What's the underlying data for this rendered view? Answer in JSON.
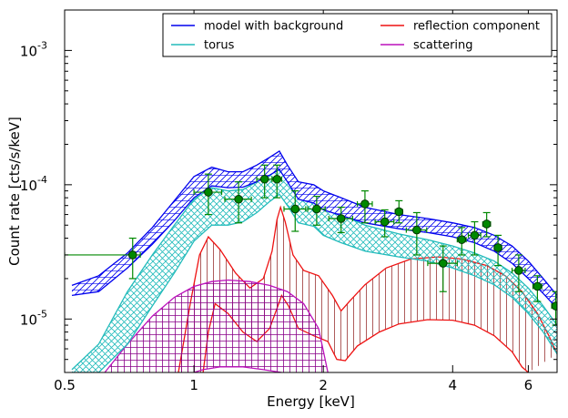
{
  "chart_data": {
    "type": "line",
    "xlabel": "Energy [keV]",
    "ylabel": "Count rate [cts/s/keV]",
    "xscale": "log",
    "yscale": "log",
    "xlim": [
      0.5,
      7.0
    ],
    "ylim": [
      4e-06,
      0.002
    ],
    "xticks": [
      {
        "value": 0.5,
        "label": "0.5"
      },
      {
        "value": 1,
        "label": "1"
      },
      {
        "value": 2,
        "label": "2"
      },
      {
        "value": 4,
        "label": "4"
      },
      {
        "value": 6,
        "label": "6"
      }
    ],
    "yticks": [
      {
        "value": 1e-05,
        "base": "10",
        "exp": "-5"
      },
      {
        "value": 0.0001,
        "base": "10",
        "exp": "-4"
      },
      {
        "value": 0.001,
        "base": "10",
        "exp": "-3"
      }
    ],
    "legend": {
      "placement": "top-right",
      "columns": 2,
      "entries": [
        {
          "label": "model with background",
          "color": "#0000ee"
        },
        {
          "label": "reflection component",
          "color": "#ee1111"
        },
        {
          "label": "torus",
          "color": "#22bbbb"
        },
        {
          "label": "scattering",
          "color": "#bb11bb"
        }
      ]
    },
    "series": [
      {
        "name": "model with background",
        "color": "#0000ee",
        "style": "band-hatched",
        "upper": [
          [
            0.52,
            1.78e-05
          ],
          [
            0.6,
            2.1e-05
          ],
          [
            0.7,
            3.1e-05
          ],
          [
            0.8,
            4.8e-05
          ],
          [
            0.9,
            7.6e-05
          ],
          [
            1.0,
            0.000115
          ],
          [
            1.1,
            0.000135
          ],
          [
            1.2,
            0.000125
          ],
          [
            1.3,
            0.000125
          ],
          [
            1.4,
            0.00014
          ],
          [
            1.5,
            0.00016
          ],
          [
            1.58,
            0.000178
          ],
          [
            1.65,
            0.00014
          ],
          [
            1.75,
            0.000105
          ],
          [
            1.9,
            0.0001
          ],
          [
            2.0,
            9e-05
          ],
          [
            2.2,
            8e-05
          ],
          [
            2.5,
            6.8e-05
          ],
          [
            3.0,
            6e-05
          ],
          [
            3.5,
            5.6e-05
          ],
          [
            4.0,
            5.2e-05
          ],
          [
            4.5,
            4.8e-05
          ],
          [
            5.0,
            4.2e-05
          ],
          [
            5.5,
            3.5e-05
          ],
          [
            6.0,
            2.7e-05
          ],
          [
            6.5,
            2e-05
          ],
          [
            7.0,
            1.5e-05
          ]
        ],
        "lower": [
          [
            0.52,
            1.5e-05
          ],
          [
            0.6,
            1.6e-05
          ],
          [
            0.7,
            2.4e-05
          ],
          [
            0.8,
            3.6e-05
          ],
          [
            0.9,
            5.4e-05
          ],
          [
            1.0,
            8e-05
          ],
          [
            1.1,
            9.8e-05
          ],
          [
            1.2,
            9.5e-05
          ],
          [
            1.3,
            9.6e-05
          ],
          [
            1.4,
            0.000105
          ],
          [
            1.5,
            0.000118
          ],
          [
            1.58,
            0.00013
          ],
          [
            1.65,
            0.000105
          ],
          [
            1.75,
            7.8e-05
          ],
          [
            1.9,
            7.3e-05
          ],
          [
            2.0,
            6.5e-05
          ],
          [
            2.2,
            5.9e-05
          ],
          [
            2.5,
            5.2e-05
          ],
          [
            3.0,
            4.7e-05
          ],
          [
            3.5,
            4.4e-05
          ],
          [
            4.0,
            4.1e-05
          ],
          [
            4.5,
            3.7e-05
          ],
          [
            5.0,
            3.2e-05
          ],
          [
            5.5,
            2.6e-05
          ],
          [
            6.0,
            2e-05
          ],
          [
            6.5,
            1.55e-05
          ],
          [
            7.0,
            1.2e-05
          ]
        ]
      },
      {
        "name": "torus",
        "color": "#22bbbb",
        "style": "band-crosshatched",
        "upper": [
          [
            0.52,
            4.2e-06
          ],
          [
            0.6,
            6.5e-06
          ],
          [
            0.7,
            1.6e-05
          ],
          [
            0.8,
            3e-05
          ],
          [
            0.9,
            5e-05
          ],
          [
            1.0,
            7.8e-05
          ],
          [
            1.1,
            9.5e-05
          ],
          [
            1.2,
            9e-05
          ],
          [
            1.3,
            9.2e-05
          ],
          [
            1.4,
            0.000105
          ],
          [
            1.5,
            0.000122
          ],
          [
            1.58,
            0.000135
          ],
          [
            1.65,
            0.00011
          ],
          [
            1.75,
            8.2e-05
          ],
          [
            1.9,
            7.8e-05
          ],
          [
            2.0,
            6.8e-05
          ],
          [
            2.2,
            6e-05
          ],
          [
            2.5,
            5e-05
          ],
          [
            3.0,
            4.3e-05
          ],
          [
            3.5,
            3.9e-05
          ],
          [
            4.0,
            3.5e-05
          ],
          [
            4.5,
            3.1e-05
          ],
          [
            5.0,
            2.7e-05
          ],
          [
            5.5,
            2.2e-05
          ],
          [
            6.0,
            1.7e-05
          ],
          [
            6.5,
            1.25e-05
          ],
          [
            7.0,
            9e-06
          ]
        ],
        "lower": [
          [
            0.52,
            4e-06
          ],
          [
            0.6,
            4e-06
          ],
          [
            0.7,
            6.5e-06
          ],
          [
            0.8,
            1.25e-05
          ],
          [
            0.9,
            2.2e-05
          ],
          [
            1.0,
            3.8e-05
          ],
          [
            1.1,
            5e-05
          ],
          [
            1.2,
            5e-05
          ],
          [
            1.3,
            5.3e-05
          ],
          [
            1.4,
            6.2e-05
          ],
          [
            1.5,
            7.5e-05
          ],
          [
            1.58,
            8.5e-05
          ],
          [
            1.65,
            7e-05
          ],
          [
            1.75,
            5.2e-05
          ],
          [
            1.9,
            4.9e-05
          ],
          [
            2.0,
            4.2e-05
          ],
          [
            2.2,
            3.7e-05
          ],
          [
            2.5,
            3.2e-05
          ],
          [
            3.0,
            2.9e-05
          ],
          [
            3.5,
            2.7e-05
          ],
          [
            4.0,
            2.4e-05
          ],
          [
            4.5,
            2.1e-05
          ],
          [
            5.0,
            1.8e-05
          ],
          [
            5.5,
            1.45e-05
          ],
          [
            6.0,
            1.1e-05
          ],
          [
            6.5,
            8e-06
          ],
          [
            7.0,
            5.5e-06
          ]
        ]
      },
      {
        "name": "reflection component",
        "color": "#ee1111",
        "style": "band-vertical-hatch",
        "upper": [
          [
            0.92,
            4e-06
          ],
          [
            0.98,
            1.3e-05
          ],
          [
            1.03,
            3e-05
          ],
          [
            1.08,
            4.1e-05
          ],
          [
            1.15,
            3.3e-05
          ],
          [
            1.25,
            2.2e-05
          ],
          [
            1.35,
            1.7e-05
          ],
          [
            1.45,
            2e-05
          ],
          [
            1.52,
            3.2e-05
          ],
          [
            1.56,
            5.5e-05
          ],
          [
            1.59,
            6.8e-05
          ],
          [
            1.63,
            5.3e-05
          ],
          [
            1.7,
            3e-05
          ],
          [
            1.8,
            2.3e-05
          ],
          [
            1.95,
            2.1e-05
          ],
          [
            2.1,
            1.5e-05
          ],
          [
            2.2,
            1.15e-05
          ],
          [
            2.3,
            1.35e-05
          ],
          [
            2.5,
            1.8e-05
          ],
          [
            2.8,
            2.4e-05
          ],
          [
            3.2,
            2.8e-05
          ],
          [
            3.7,
            2.9e-05
          ],
          [
            4.2,
            2.8e-05
          ],
          [
            4.8,
            2.5e-05
          ],
          [
            5.3,
            2.1e-05
          ],
          [
            5.8,
            1.6e-05
          ],
          [
            6.3,
            1.1e-05
          ],
          [
            6.7,
            7.5e-06
          ],
          [
            7.0,
            5.5e-06
          ]
        ],
        "lower": [
          [
            1.05,
            4e-06
          ],
          [
            1.08,
            8e-06
          ],
          [
            1.12,
            1.3e-05
          ],
          [
            1.2,
            1.1e-05
          ],
          [
            1.3,
            8e-06
          ],
          [
            1.4,
            6.8e-06
          ],
          [
            1.5,
            8.5e-06
          ],
          [
            1.56,
            1.2e-05
          ],
          [
            1.6,
            1.5e-05
          ],
          [
            1.66,
            1.25e-05
          ],
          [
            1.75,
            8.5e-06
          ],
          [
            1.9,
            7.5e-06
          ],
          [
            2.05,
            6.8e-06
          ],
          [
            2.15,
            5e-06
          ],
          [
            2.25,
            4.9e-06
          ],
          [
            2.4,
            6.3e-06
          ],
          [
            2.7,
            8e-06
          ],
          [
            3.0,
            9.2e-06
          ],
          [
            3.5,
            9.9e-06
          ],
          [
            4.0,
            9.8e-06
          ],
          [
            4.5,
            9e-06
          ],
          [
            5.0,
            7.5e-06
          ],
          [
            5.5,
            5.7e-06
          ],
          [
            5.8,
            4.4e-06
          ],
          [
            6.0,
            4e-06
          ]
        ]
      },
      {
        "name": "scattering",
        "color": "#bb11bb",
        "style": "band-grid-hatch",
        "upper": [
          [
            0.62,
            4e-06
          ],
          [
            0.7,
            6.5e-06
          ],
          [
            0.8,
            1.05e-05
          ],
          [
            0.9,
            1.45e-05
          ],
          [
            1.0,
            1.75e-05
          ],
          [
            1.1,
            1.9e-05
          ],
          [
            1.2,
            1.95e-05
          ],
          [
            1.35,
            1.9e-05
          ],
          [
            1.5,
            1.78e-05
          ],
          [
            1.65,
            1.6e-05
          ],
          [
            1.8,
            1.3e-05
          ],
          [
            1.95,
            8.5e-06
          ],
          [
            2.05,
            4e-06
          ]
        ],
        "lower": [
          [
            1.0,
            4e-06
          ],
          [
            1.05,
            4.2e-06
          ],
          [
            1.15,
            4.4e-06
          ],
          [
            1.3,
            4.4e-06
          ],
          [
            1.45,
            4.2e-06
          ],
          [
            1.6,
            4e-06
          ]
        ]
      }
    ],
    "data_points": {
      "color": "#008800",
      "points": [
        {
          "x": 0.72,
          "y": 3e-05,
          "xerr": [
            0.5,
            0.75
          ],
          "yerr": [
            2e-05,
            4e-05
          ]
        },
        {
          "x": 1.08,
          "y": 8.8e-05,
          "xerr": [
            1.0,
            1.16
          ],
          "yerr": [
            6e-05,
            0.00012
          ]
        },
        {
          "x": 1.27,
          "y": 7.8e-05,
          "xerr": [
            1.18,
            1.36
          ],
          "yerr": [
            5.2e-05,
            0.000105
          ]
        },
        {
          "x": 1.46,
          "y": 0.00011,
          "xerr": [
            1.4,
            1.52
          ],
          "yerr": [
            8e-05,
            0.00014
          ]
        },
        {
          "x": 1.56,
          "y": 0.00011,
          "xerr": [
            1.52,
            1.6
          ],
          "yerr": [
            8e-05,
            0.00014
          ]
        },
        {
          "x": 1.72,
          "y": 6.6e-05,
          "xerr": [
            1.62,
            1.82
          ],
          "yerr": [
            4.5e-05,
            9e-05
          ]
        },
        {
          "x": 1.93,
          "y": 6.6e-05,
          "xerr": [
            1.84,
            2.02
          ],
          "yerr": [
            5e-05,
            8.2e-05
          ]
        },
        {
          "x": 2.2,
          "y": 5.6e-05,
          "xerr": [
            2.06,
            2.34
          ],
          "yerr": [
            4.4e-05,
            6.8e-05
          ]
        },
        {
          "x": 2.5,
          "y": 7.2e-05,
          "xerr": [
            2.4,
            2.6
          ],
          "yerr": [
            5.2e-05,
            9e-05
          ]
        },
        {
          "x": 2.78,
          "y": 5.3e-05,
          "xerr": [
            2.64,
            2.92
          ],
          "yerr": [
            4.1e-05,
            6.5e-05
          ]
        },
        {
          "x": 3.0,
          "y": 6.3e-05,
          "xerr": [
            2.94,
            3.06
          ],
          "yerr": [
            5.2e-05,
            7.6e-05
          ]
        },
        {
          "x": 3.3,
          "y": 4.6e-05,
          "xerr": [
            3.12,
            3.48
          ],
          "yerr": [
            3e-05,
            6.2e-05
          ]
        },
        {
          "x": 3.8,
          "y": 2.6e-05,
          "xerr": [
            3.5,
            4.1
          ],
          "yerr": [
            1.6e-05,
            3.5e-05
          ]
        },
        {
          "x": 4.2,
          "y": 3.9e-05,
          "xerr": [
            4.1,
            4.3
          ],
          "yerr": [
            3e-05,
            4.8e-05
          ]
        },
        {
          "x": 4.5,
          "y": 4.2e-05,
          "xerr": [
            4.35,
            4.65
          ],
          "yerr": [
            3e-05,
            5.3e-05
          ]
        },
        {
          "x": 4.8,
          "y": 5.1e-05,
          "xerr": [
            4.7,
            4.9
          ],
          "yerr": [
            4.1e-05,
            6.2e-05
          ]
        },
        {
          "x": 5.1,
          "y": 3.4e-05,
          "xerr": [
            5.0,
            5.2
          ],
          "yerr": [
            2.5e-05,
            4.2e-05
          ]
        },
        {
          "x": 5.7,
          "y": 2.3e-05,
          "xerr": [
            5.5,
            5.9
          ],
          "yerr": [
            1.6e-05,
            3e-05
          ]
        },
        {
          "x": 6.3,
          "y": 1.75e-05,
          "xerr": [
            6.15,
            6.45
          ],
          "yerr": [
            1.35e-05,
            2.1e-05
          ]
        },
        {
          "x": 6.95,
          "y": 1.25e-05,
          "xerr": [
            6.8,
            7.0
          ],
          "yerr": [
            9e-06,
            1.6e-05
          ]
        }
      ]
    }
  }
}
